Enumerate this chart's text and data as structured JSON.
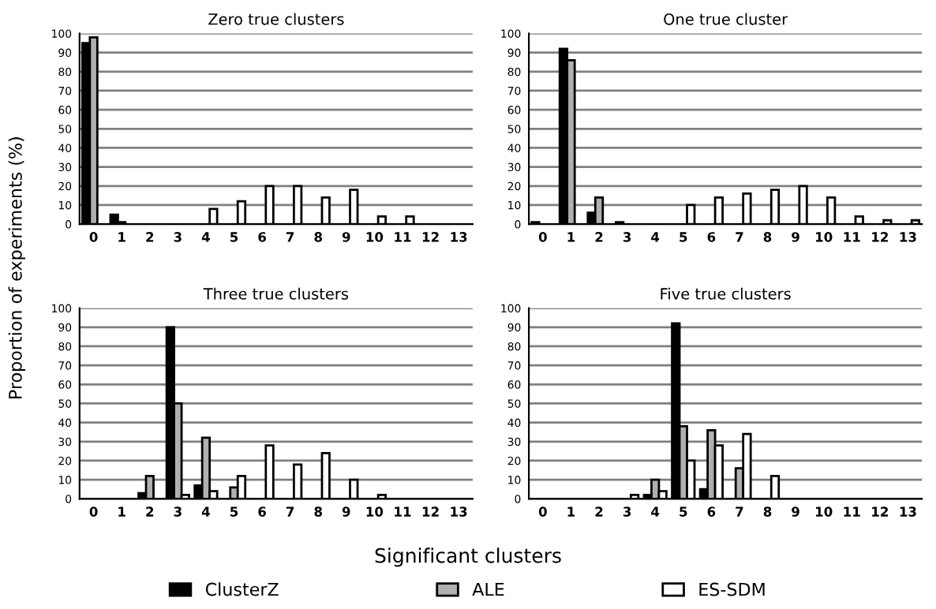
{
  "chart_data": [
    {
      "type": "bar",
      "title": "Zero true clusters",
      "ylabel": "Proportion of experiments (%)",
      "legend": "bottom",
      "categories": [
        "0",
        "1",
        "2",
        "3",
        "4",
        "5",
        "6",
        "7",
        "8",
        "9",
        "10",
        "11",
        "12",
        "13"
      ],
      "ylim": [
        0,
        100
      ],
      "yticks": [
        0,
        10,
        20,
        30,
        40,
        50,
        60,
        70,
        80,
        90,
        100
      ],
      "grid": "y",
      "series": [
        {
          "name": "ClusterZ",
          "color": "#000000",
          "values": [
            95,
            5,
            null,
            null,
            null,
            null,
            null,
            null,
            null,
            null,
            null,
            null,
            null,
            null
          ]
        },
        {
          "name": "ALE",
          "color": "#b0b0b0",
          "values": [
            98,
            1,
            null,
            null,
            null,
            null,
            null,
            null,
            null,
            null,
            null,
            null,
            null,
            null
          ]
        },
        {
          "name": "ES-SDM",
          "color": "#ffffff",
          "values": [
            null,
            null,
            null,
            null,
            8,
            12,
            20,
            20,
            14,
            18,
            4,
            4,
            null,
            null
          ]
        }
      ]
    },
    {
      "type": "bar",
      "title": "One true cluster",
      "categories": [
        "0",
        "1",
        "2",
        "3",
        "4",
        "5",
        "6",
        "7",
        "8",
        "9",
        "10",
        "11",
        "12",
        "13"
      ],
      "ylim": [
        0,
        100
      ],
      "yticks": [
        0,
        10,
        20,
        30,
        40,
        50,
        60,
        70,
        80,
        90,
        100
      ],
      "grid": "y",
      "series": [
        {
          "color": "#000000",
          "values": [
            1,
            92,
            6,
            1,
            null,
            null,
            null,
            null,
            null,
            null,
            null,
            null,
            null,
            null
          ]
        },
        {
          "color": "#b0b0b0",
          "values": [
            null,
            86,
            14,
            null,
            null,
            null,
            null,
            null,
            null,
            null,
            null,
            null,
            null,
            null
          ]
        },
        {
          "color": "#ffffff",
          "values": [
            null,
            null,
            null,
            null,
            null,
            10,
            14,
            16,
            18,
            20,
            14,
            4,
            2,
            2
          ]
        }
      ]
    },
    {
      "type": "bar",
      "title": "Three true clusters",
      "xlabel": "Significant clusters",
      "categories": [
        "0",
        "1",
        "2",
        "3",
        "4",
        "5",
        "6",
        "7",
        "8",
        "9",
        "10",
        "11",
        "12",
        "13"
      ],
      "ylim": [
        0,
        100
      ],
      "yticks": [
        0,
        10,
        20,
        30,
        40,
        50,
        60,
        70,
        80,
        90,
        100
      ],
      "grid": "y",
      "series": [
        {
          "color": "#000000",
          "values": [
            null,
            null,
            3,
            90,
            7,
            null,
            null,
            null,
            null,
            null,
            null,
            null,
            null,
            null
          ]
        },
        {
          "color": "#b0b0b0",
          "values": [
            null,
            null,
            12,
            50,
            32,
            6,
            null,
            null,
            null,
            null,
            null,
            null,
            null,
            null
          ]
        },
        {
          "color": "#ffffff",
          "values": [
            null,
            null,
            null,
            2,
            4,
            12,
            28,
            18,
            24,
            10,
            2,
            null,
            null,
            null
          ]
        }
      ]
    },
    {
      "type": "bar",
      "title": "Five true clusters",
      "categories": [
        "0",
        "1",
        "2",
        "3",
        "4",
        "5",
        "6",
        "7",
        "8",
        "9",
        "10",
        "11",
        "12",
        "13"
      ],
      "ylim": [
        0,
        100
      ],
      "yticks": [
        0,
        10,
        20,
        30,
        40,
        50,
        60,
        70,
        80,
        90,
        100
      ],
      "grid": "y",
      "series": [
        {
          "color": "#000000",
          "values": [
            null,
            null,
            null,
            null,
            2,
            92,
            5,
            null,
            null,
            null,
            null,
            null,
            null,
            null
          ]
        },
        {
          "color": "#b0b0b0",
          "values": [
            null,
            null,
            null,
            null,
            10,
            38,
            36,
            16,
            null,
            null,
            null,
            null,
            null,
            null
          ]
        },
        {
          "color": "#ffffff",
          "values": [
            null,
            null,
            null,
            2,
            4,
            20,
            28,
            34,
            12,
            null,
            null,
            null,
            null,
            null
          ]
        }
      ]
    }
  ]
}
